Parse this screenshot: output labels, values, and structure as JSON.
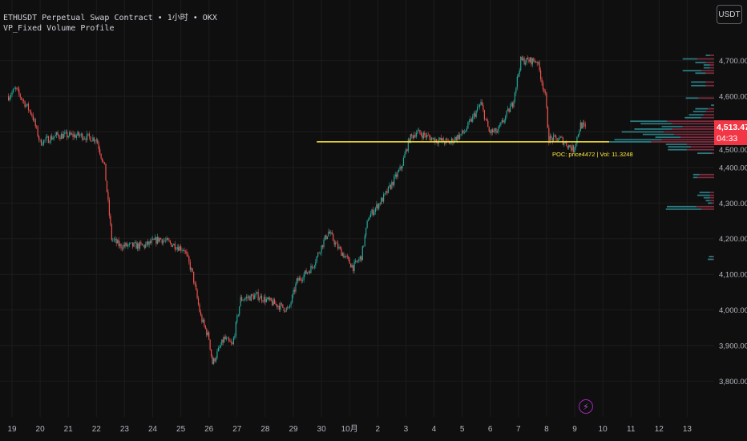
{
  "header": {
    "symbol_line": "ETHUSDT Perpetual Swap Contract • 1小时 • OKX",
    "indicator": "VP_Fixed Volume Profile",
    "currency_button": "USDT"
  },
  "last_price": {
    "value": "4,513.47",
    "countdown": "04:33"
  },
  "colors": {
    "background": "#0f0f0f",
    "up": "#26a69a",
    "down": "#ef5350",
    "poc": "#ffeb3b",
    "price_tag": "#f23645",
    "profile_up": "#2b7a80",
    "profile_down": "#7c2c3e"
  },
  "icons": {
    "bolt": "lightning-icon"
  },
  "chart_data": {
    "type": "candlestick",
    "interval": "1h",
    "y_ticks": [
      "4,700.00",
      "4,600.00",
      "4,500.00",
      "4,400.00",
      "4,300.00",
      "4,200.00",
      "4,100.00",
      "4,000.00",
      "3,900.00",
      "3,800.00"
    ],
    "y_tick_values": [
      4700,
      4600,
      4500,
      4400,
      4300,
      4200,
      4100,
      4000,
      3900,
      3800
    ],
    "x_ticks": [
      "19",
      "20",
      "21",
      "22",
      "23",
      "24",
      "25",
      "26",
      "27",
      "28",
      "29",
      "30",
      "10月",
      "2",
      "3",
      "4",
      "5",
      "6",
      "7",
      "8",
      "9",
      "10",
      "11",
      "12",
      "13"
    ],
    "grid": true,
    "price_path": [
      [
        "09-18 21:00",
        4600
      ],
      [
        "09-19 03:00",
        4620
      ],
      [
        "09-19 17:00",
        4550
      ],
      [
        "09-20 00:00",
        4470
      ],
      [
        "09-20 14:00",
        4490
      ],
      [
        "09-21 10:00",
        4490
      ],
      [
        "09-22 00:00",
        4480
      ],
      [
        "09-22 07:00",
        4400
      ],
      [
        "09-22 10:00",
        4300
      ],
      [
        "09-22 13:00",
        4200
      ],
      [
        "09-22 20:00",
        4180
      ],
      [
        "09-23 17:00",
        4180
      ],
      [
        "09-24 06:00",
        4200
      ],
      [
        "09-25 03:00",
        4170
      ],
      [
        "09-25 10:00",
        4100
      ],
      [
        "09-25 17:00",
        3980
      ],
      [
        "09-26 00:00",
        3920
      ],
      [
        "09-26 03:00",
        3850
      ],
      [
        "09-26 13:00",
        3920
      ],
      [
        "09-26 20:00",
        3900
      ],
      [
        "09-27 03:00",
        4030
      ],
      [
        "09-27 17:00",
        4040
      ],
      [
        "09-28 06:00",
        4020
      ],
      [
        "09-28 20:00",
        4000
      ],
      [
        "09-29 03:00",
        4080
      ],
      [
        "09-29 16:00",
        4120
      ],
      [
        "09-30 03:00",
        4200
      ],
      [
        "09-30 06:00",
        4220
      ],
      [
        "09-30 13:00",
        4180
      ],
      [
        "10-01 03:00",
        4120
      ],
      [
        "10-01 10:00",
        4150
      ],
      [
        "10-01 16:00",
        4260
      ],
      [
        "10-02 06:00",
        4320
      ],
      [
        "10-02 20:00",
        4400
      ],
      [
        "10-03 03:00",
        4480
      ],
      [
        "10-03 09:00",
        4500
      ],
      [
        "10-03 23:00",
        4480
      ],
      [
        "10-04 13:00",
        4470
      ],
      [
        "10-05 02:00",
        4500
      ],
      [
        "10-05 16:00",
        4580
      ],
      [
        "10-05 23:00",
        4500
      ],
      [
        "10-06 06:00",
        4500
      ],
      [
        "10-06 19:00",
        4580
      ],
      [
        "10-07 02:00",
        4700
      ],
      [
        "10-07 16:00",
        4700
      ],
      [
        "10-07 23:00",
        4600
      ],
      [
        "10-08 02:00",
        4480
      ],
      [
        "10-08 12:00",
        4480
      ],
      [
        "10-08 23:00",
        4450
      ],
      [
        "10-09 05:00",
        4520
      ],
      [
        "10-09 09:00",
        4513.47
      ]
    ],
    "volume_profile": {
      "poc_label": "POC: price4472 | Vol: 11.3248",
      "poc_price": 4472,
      "poc_start": "09-29 20:00",
      "rows": [
        [
          4715,
          4,
          4
        ],
        [
          4705,
          14,
          16
        ],
        [
          4695,
          10,
          8
        ],
        [
          4688,
          6,
          4
        ],
        [
          4680,
          6,
          4
        ],
        [
          4672,
          18,
          12
        ],
        [
          4665,
          10,
          8
        ],
        [
          4640,
          14,
          8
        ],
        [
          4630,
          14,
          8
        ],
        [
          4595,
          12,
          15
        ],
        [
          4575,
          3,
          0
        ],
        [
          4565,
          12,
          6
        ],
        [
          4557,
          12,
          8
        ],
        [
          4548,
          14,
          10
        ],
        [
          4540,
          16,
          12
        ],
        [
          4530,
          35,
          45
        ],
        [
          4523,
          30,
          40
        ],
        [
          4515,
          20,
          30
        ],
        [
          4508,
          36,
          40
        ],
        [
          4500,
          40,
          48
        ],
        [
          4493,
          30,
          38
        ],
        [
          4485,
          24,
          32
        ],
        [
          4478,
          45,
          50
        ],
        [
          4472,
          40,
          60
        ],
        [
          4465,
          20,
          26
        ],
        [
          4458,
          22,
          22
        ],
        [
          4450,
          18,
          26
        ],
        [
          4440,
          14,
          2
        ],
        [
          4380,
          6,
          14
        ],
        [
          4372,
          4,
          16
        ],
        [
          4330,
          10,
          4
        ],
        [
          4322,
          12,
          4
        ],
        [
          4315,
          6,
          4
        ],
        [
          4307,
          4,
          4
        ],
        [
          4300,
          4,
          2
        ],
        [
          4290,
          28,
          17
        ],
        [
          4283,
          34,
          12
        ],
        [
          4150,
          4,
          1
        ],
        [
          4142,
          5,
          1
        ]
      ]
    }
  }
}
